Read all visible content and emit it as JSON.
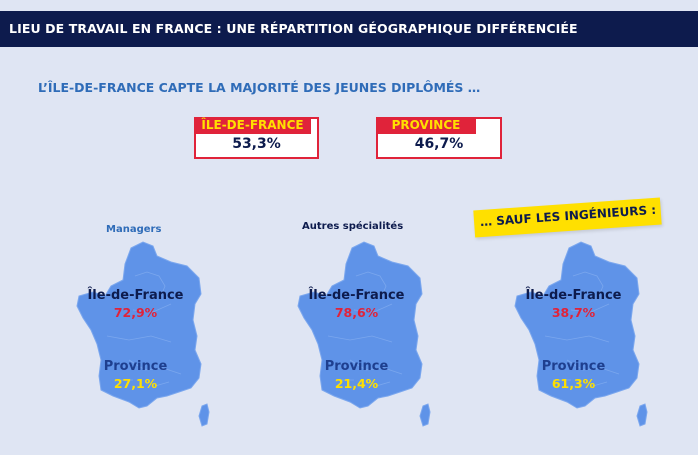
{
  "header": {
    "title": "LIEU DE TRAVAIL EN FRANCE : UNE RÉPARTITION GÉOGRAPHIQUE DIFFÉRENCIÉE"
  },
  "subtitle": "L’ÎLE-DE-FRANCE CAPTE LA MAJORITÉ DES JEUNES DIPLÔMÉS …",
  "stats": [
    {
      "label": "ÎLE-DE-FRANCE",
      "value": "53,3%"
    },
    {
      "label": "PROVINCE",
      "value": "46,7%"
    }
  ],
  "sticker": "… SAUF LES INGÉNIEURS :",
  "maps": [
    {
      "title": "Managers",
      "region_a": "Île-de-France",
      "value_a": "72,9%",
      "region_b": "Province",
      "value_b": "27,1%"
    },
    {
      "title": "Autres spécialités",
      "region_a": "Île-de-France",
      "value_a": "78,6%",
      "region_b": "Province",
      "value_b": "21,4%"
    },
    {
      "title": "",
      "region_a": "Île-de-France",
      "value_a": "38,7%",
      "region_b": "Province",
      "value_b": "61,3%"
    }
  ],
  "colors": {
    "header_bg": "#0d1b4d",
    "page_bg": "#dfe5f3",
    "accent_red": "#e0233a",
    "accent_yellow": "#ffe000",
    "map_fill": "#5f93e8",
    "subtitle_blue": "#2f6cb8"
  }
}
